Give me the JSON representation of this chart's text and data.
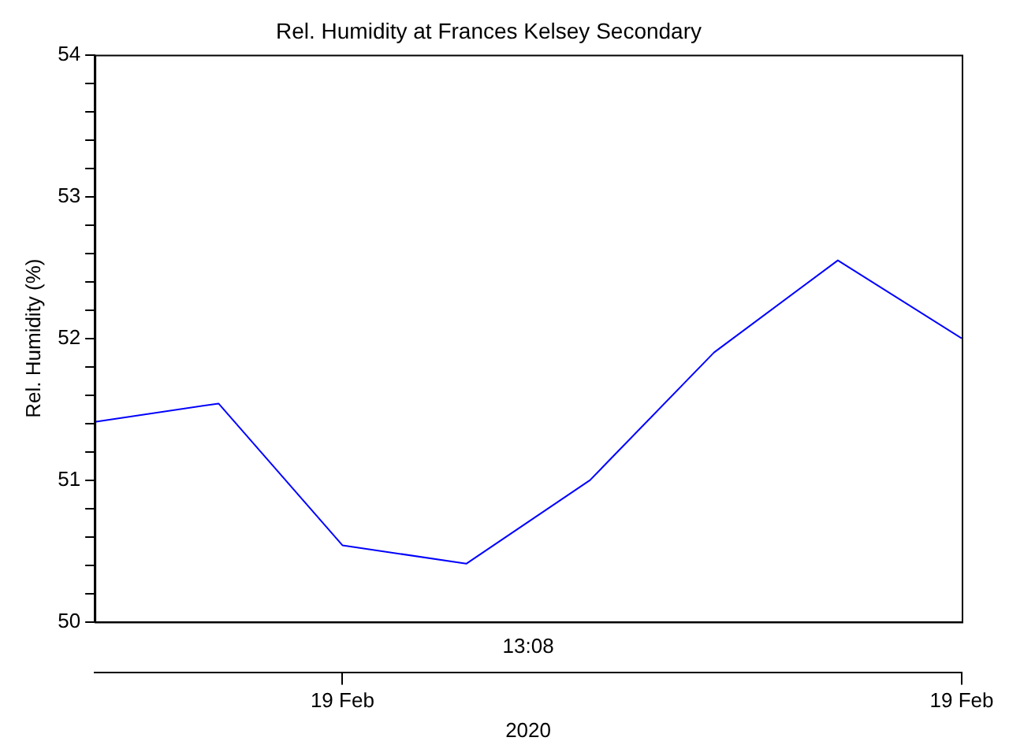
{
  "chart_data": {
    "type": "line",
    "title": "Rel. Humidity at Frances Kelsey Secondary",
    "ylabel": "Rel. Humidity (%)",
    "xlabel": "2020",
    "annotations": [
      "13:08"
    ],
    "categories": [
      null,
      null,
      "19 Feb",
      null,
      null,
      null,
      null,
      "19 Feb"
    ],
    "series": [
      {
        "color": "#0000ff",
        "values": [
          51.41,
          51.54,
          50.54,
          50.41,
          51.0,
          51.9,
          52.55,
          52.0
        ]
      }
    ],
    "ylim": [
      50,
      54
    ],
    "yticks": [
      50,
      {
        "value": 50.2,
        "label": null
      },
      {
        "value": 50.4,
        "label": null
      },
      {
        "value": 50.6,
        "label": null
      },
      {
        "value": 50.8,
        "label": null
      },
      51,
      {
        "value": 51.2,
        "label": null
      },
      {
        "value": 51.4,
        "label": null
      },
      {
        "value": 51.6,
        "label": null
      },
      {
        "value": 51.8,
        "label": null
      },
      52,
      {
        "value": 52.2,
        "label": null
      },
      {
        "value": 52.4,
        "label": null
      },
      {
        "value": 52.6,
        "label": null
      },
      {
        "value": 52.8,
        "label": null
      },
      53,
      {
        "value": 53.2,
        "label": null
      },
      {
        "value": 53.4,
        "label": null
      },
      {
        "value": 53.6,
        "label": null
      },
      {
        "value": 53.8,
        "label": null
      },
      54
    ],
    "grid": false,
    "legend": false,
    "marker": "none",
    "line_style": "solid"
  }
}
